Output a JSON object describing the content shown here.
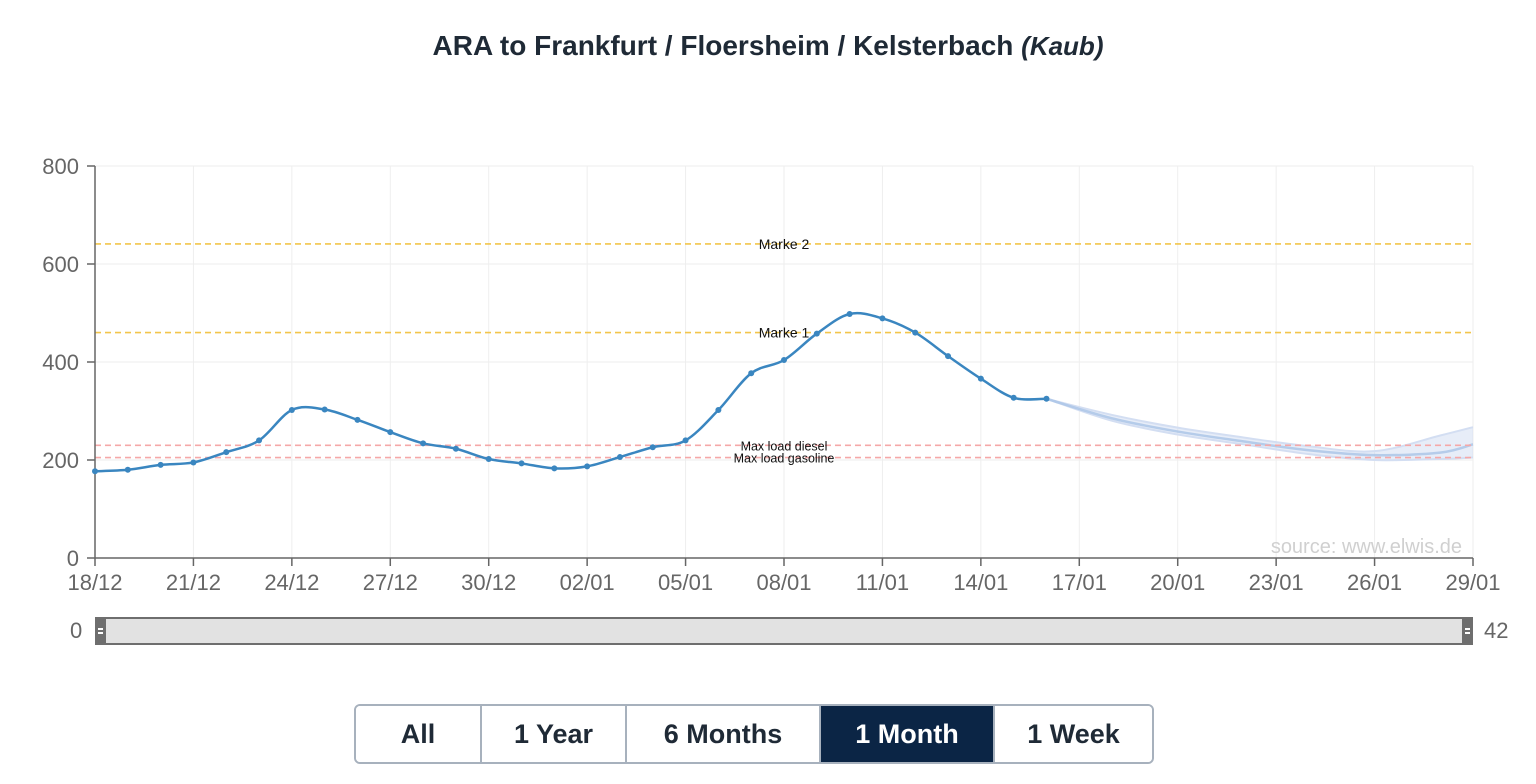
{
  "title": {
    "main": "ARA to Frankfurt / Floersheim / Kelsterbach",
    "sub": "(Kaub)"
  },
  "colors": {
    "line": "#3a86c0",
    "forecast": "#a9c3e6",
    "marke": "#f2c54b",
    "maxload": "#f5a8a8",
    "active_button": "#0b2545"
  },
  "chart_data": {
    "type": "line",
    "title": "ARA to Frankfurt / Floersheim / Kelsterbach (Kaub)",
    "xlabel": "",
    "ylabel": "",
    "ylim": [
      0,
      800
    ],
    "y_ticks": [
      "0",
      "200",
      "400",
      "600",
      "800"
    ],
    "x_ticks": [
      "18/12",
      "21/12",
      "24/12",
      "27/12",
      "30/12",
      "02/01",
      "05/01",
      "08/01",
      "11/01",
      "14/01",
      "17/01",
      "20/01",
      "23/01",
      "26/01",
      "29/01"
    ],
    "xlim": [
      0,
      42
    ],
    "grid": true,
    "series": [
      {
        "x": [
          0,
          1,
          2,
          3,
          4,
          5,
          6,
          7,
          8,
          9,
          10,
          11,
          12,
          13,
          14,
          15,
          16,
          17,
          18,
          19,
          20,
          21,
          22,
          23,
          24,
          25,
          26,
          27,
          28,
          29
        ],
        "values": [
          177,
          180,
          190,
          195,
          216,
          240,
          302,
          303,
          282,
          257,
          234,
          223,
          202,
          193,
          183,
          187,
          206,
          226,
          240,
          302,
          377,
          404,
          458,
          498,
          489,
          460,
          412,
          366,
          327,
          325
        ]
      }
    ],
    "forecast": {
      "x": [
        29,
        31,
        33,
        35,
        37,
        39,
        41,
        42
      ],
      "values": [
        325,
        285,
        258,
        238,
        220,
        210,
        215,
        232
      ],
      "upper": [
        325,
        292,
        266,
        246,
        228,
        218,
        250,
        267
      ],
      "lower": [
        325,
        280,
        252,
        232,
        212,
        200,
        202,
        205
      ]
    },
    "reference_lines": [
      {
        "label": "Marke 2",
        "value": 641,
        "color": "#f2c54b"
      },
      {
        "label": "Marke 1",
        "value": 460,
        "color": "#f2c54b"
      },
      {
        "label": "Max load diesel",
        "value": 230,
        "color": "#f5a8a8"
      },
      {
        "label": "Max load gasoline",
        "value": 205,
        "color": "#f5a8a8"
      }
    ],
    "source": "source: www.elwis.de"
  },
  "range_slider": {
    "min_label": "0",
    "max_label": "42"
  },
  "buttons": [
    {
      "label": "All",
      "active": false
    },
    {
      "label": "1 Year",
      "active": false
    },
    {
      "label": "6 Months",
      "active": false
    },
    {
      "label": "1 Month",
      "active": true
    },
    {
      "label": "1 Week",
      "active": false
    }
  ]
}
